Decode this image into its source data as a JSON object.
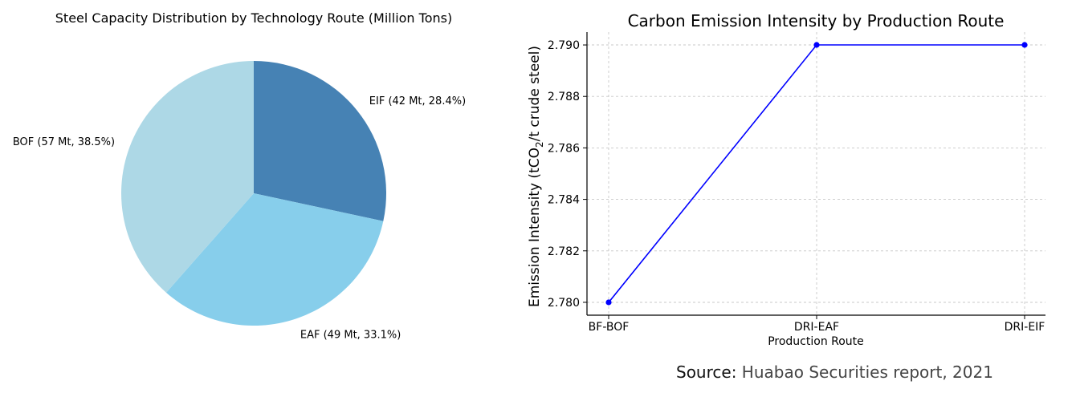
{
  "chart_data": [
    {
      "type": "pie",
      "title": "Steel Capacity Distribution by Technology Route (Million Tons)",
      "unit": "Mt",
      "slices": [
        {
          "label": "EIF (42 Mt, 28.4%)",
          "value": 42,
          "percent": 28.4,
          "color": "#4682b4"
        },
        {
          "label": "EAF (49 Mt, 33.1%)",
          "value": 49,
          "percent": 33.1,
          "color": "#87ceeb"
        },
        {
          "label": "BOF (57 Mt, 38.5%)",
          "value": 57,
          "percent": 38.5,
          "color": "#add8e6"
        }
      ],
      "start_angle_deg": 90,
      "direction": "clockwise"
    },
    {
      "type": "line",
      "title": "Carbon Emission Intensity by Production Route",
      "xlabel": "Production Route",
      "ylabel_parts": [
        "Emission Intensity (tCO",
        "2",
        "/t crude steel)"
      ],
      "categories": [
        "BF-BOF",
        "DRI-EAF",
        "DRI-EIF"
      ],
      "series": [
        {
          "values": [
            2.78,
            2.79,
            2.79
          ],
          "color": "#0000ff",
          "marker": "circle"
        }
      ],
      "ylim": [
        2.7795,
        2.7905
      ],
      "yticks": [
        2.78,
        2.782,
        2.784,
        2.786,
        2.788,
        2.79
      ],
      "ytick_labels": [
        "2.780",
        "2.782",
        "2.784",
        "2.786",
        "2.788",
        "2.790"
      ],
      "grid": true
    }
  ],
  "source": {
    "prefix": "Source:",
    "text": "Huabao Securities report, 2021"
  }
}
